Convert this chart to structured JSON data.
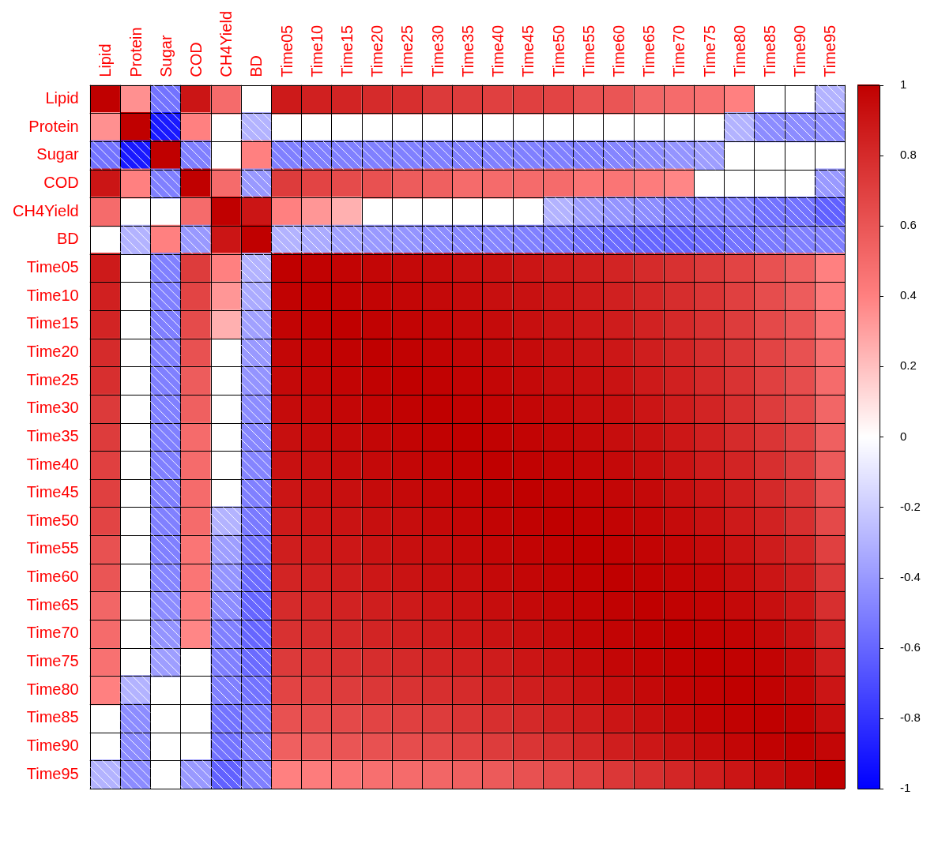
{
  "chart_data": {
    "type": "heatmap",
    "categories": [
      "Lipid",
      "Protein",
      "Sugar",
      "COD",
      "CH4Yield",
      "BD",
      "Time05",
      "Time10",
      "Time15",
      "Time20",
      "Time25",
      "Time30",
      "Time35",
      "Time40",
      "Time45",
      "Time50",
      "Time55",
      "Time60",
      "Time65",
      "Time70",
      "Time75",
      "Time80",
      "Time85",
      "Time90",
      "Time95"
    ],
    "y_categories": [
      "Lipid",
      "Protein",
      "Sugar",
      "COD",
      "CH4Yield",
      "BD",
      "Time05",
      "Time10",
      "Time15",
      "Time20",
      "Time25",
      "Time30",
      "Time35",
      "Time40",
      "Time45",
      "Time50",
      "Time55",
      "Time60",
      "Time65",
      "Time70",
      "Time75",
      "Time80",
      "Time85",
      "Time90",
      "Time95"
    ],
    "clim": [
      -1,
      1
    ],
    "grid": true,
    "cticks": [
      -1,
      -0.8,
      -0.6,
      -0.4,
      -0.2,
      0,
      0.2,
      0.4,
      0.6,
      0.8,
      1
    ],
    "cells": [
      [
        1,
        0.35,
        -0.55,
        0.9,
        0.5,
        null,
        0.88,
        0.85,
        0.83,
        0.8,
        0.78,
        0.73,
        0.72,
        0.7,
        0.7,
        0.68,
        0.62,
        0.6,
        0.52,
        0.5,
        0.47,
        0.4,
        null,
        null,
        -0.3
      ],
      [
        0.35,
        1,
        -0.9,
        0.4,
        null,
        -0.3,
        null,
        null,
        null,
        null,
        null,
        null,
        null,
        null,
        null,
        null,
        null,
        null,
        null,
        null,
        null,
        -0.3,
        -0.45,
        -0.45,
        -0.45
      ],
      [
        -0.55,
        -0.9,
        1,
        -0.5,
        null,
        0.4,
        -0.5,
        -0.5,
        -0.5,
        -0.5,
        -0.5,
        -0.5,
        -0.5,
        -0.5,
        -0.5,
        -0.5,
        -0.5,
        -0.48,
        -0.45,
        -0.42,
        -0.38,
        null,
        null,
        null,
        null
      ],
      [
        0.9,
        0.4,
        -0.5,
        1,
        0.5,
        -0.4,
        0.72,
        0.68,
        0.65,
        0.62,
        0.57,
        0.55,
        0.5,
        0.5,
        0.5,
        0.5,
        0.45,
        0.45,
        0.42,
        0.38,
        null,
        null,
        null,
        null,
        -0.4
      ],
      [
        0.5,
        null,
        null,
        0.5,
        1,
        0.9,
        0.4,
        0.33,
        0.25,
        null,
        null,
        null,
        null,
        null,
        null,
        -0.3,
        -0.38,
        -0.42,
        -0.45,
        -0.5,
        -0.5,
        -0.5,
        -0.55,
        -0.55,
        -0.62
      ],
      [
        null,
        -0.3,
        0.4,
        -0.4,
        0.9,
        1,
        -0.3,
        -0.33,
        -0.37,
        -0.4,
        -0.42,
        -0.45,
        -0.47,
        -0.48,
        -0.5,
        -0.52,
        -0.55,
        -0.58,
        -0.6,
        -0.6,
        -0.58,
        -0.55,
        -0.52,
        -0.5,
        -0.5
      ],
      [
        0.88,
        null,
        -0.5,
        0.72,
        0.4,
        -0.3,
        1,
        0.99,
        0.98,
        0.97,
        0.96,
        0.95,
        0.93,
        0.92,
        0.9,
        0.88,
        0.86,
        0.83,
        0.8,
        0.77,
        0.73,
        0.68,
        0.62,
        0.55,
        0.4
      ],
      [
        0.85,
        null,
        -0.5,
        0.68,
        0.33,
        -0.33,
        0.99,
        1,
        0.99,
        0.98,
        0.97,
        0.96,
        0.95,
        0.93,
        0.92,
        0.9,
        0.88,
        0.85,
        0.82,
        0.79,
        0.75,
        0.7,
        0.64,
        0.57,
        0.42
      ],
      [
        0.83,
        null,
        -0.5,
        0.65,
        0.25,
        -0.37,
        0.98,
        0.99,
        1,
        0.99,
        0.98,
        0.97,
        0.96,
        0.95,
        0.93,
        0.91,
        0.89,
        0.87,
        0.84,
        0.81,
        0.77,
        0.72,
        0.66,
        0.6,
        0.45
      ],
      [
        0.8,
        null,
        -0.5,
        0.62,
        null,
        -0.4,
        0.97,
        0.98,
        0.99,
        1,
        0.99,
        0.98,
        0.97,
        0.96,
        0.95,
        0.93,
        0.91,
        0.89,
        0.86,
        0.83,
        0.79,
        0.74,
        0.68,
        0.62,
        0.48
      ],
      [
        0.78,
        null,
        -0.5,
        0.57,
        null,
        -0.42,
        0.96,
        0.97,
        0.98,
        0.99,
        1,
        0.99,
        0.98,
        0.97,
        0.96,
        0.94,
        0.93,
        0.91,
        0.88,
        0.85,
        0.81,
        0.76,
        0.7,
        0.64,
        0.5
      ],
      [
        0.73,
        null,
        -0.5,
        0.55,
        null,
        -0.45,
        0.95,
        0.96,
        0.97,
        0.98,
        0.99,
        1,
        0.99,
        0.98,
        0.97,
        0.96,
        0.94,
        0.93,
        0.9,
        0.87,
        0.83,
        0.78,
        0.72,
        0.66,
        0.52
      ],
      [
        0.72,
        null,
        -0.5,
        0.5,
        null,
        -0.47,
        0.93,
        0.95,
        0.96,
        0.97,
        0.98,
        0.99,
        1,
        0.99,
        0.98,
        0.97,
        0.96,
        0.94,
        0.92,
        0.89,
        0.85,
        0.8,
        0.75,
        0.69,
        0.55
      ],
      [
        0.7,
        null,
        -0.5,
        0.5,
        null,
        -0.48,
        0.92,
        0.93,
        0.95,
        0.96,
        0.97,
        0.98,
        0.99,
        1,
        0.99,
        0.98,
        0.97,
        0.96,
        0.94,
        0.91,
        0.87,
        0.83,
        0.78,
        0.72,
        0.58
      ],
      [
        0.7,
        null,
        -0.5,
        0.5,
        null,
        -0.5,
        0.9,
        0.92,
        0.93,
        0.95,
        0.96,
        0.97,
        0.98,
        0.99,
        1,
        0.99,
        0.98,
        0.97,
        0.96,
        0.93,
        0.9,
        0.86,
        0.81,
        0.75,
        0.62
      ],
      [
        0.68,
        null,
        -0.5,
        0.5,
        -0.3,
        -0.52,
        0.88,
        0.9,
        0.91,
        0.93,
        0.94,
        0.96,
        0.97,
        0.98,
        0.99,
        1,
        0.99,
        0.98,
        0.97,
        0.95,
        0.92,
        0.88,
        0.84,
        0.78,
        0.66
      ],
      [
        0.62,
        null,
        -0.5,
        0.45,
        -0.38,
        -0.55,
        0.86,
        0.88,
        0.89,
        0.91,
        0.93,
        0.94,
        0.96,
        0.97,
        0.98,
        0.99,
        1,
        0.99,
        0.98,
        0.97,
        0.95,
        0.91,
        0.87,
        0.82,
        0.7
      ],
      [
        0.6,
        null,
        -0.48,
        0.45,
        -0.42,
        -0.58,
        0.83,
        0.85,
        0.87,
        0.89,
        0.91,
        0.93,
        0.94,
        0.96,
        0.97,
        0.98,
        0.99,
        1,
        0.99,
        0.98,
        0.97,
        0.94,
        0.9,
        0.86,
        0.74
      ],
      [
        0.52,
        null,
        -0.45,
        0.42,
        -0.45,
        -0.6,
        0.8,
        0.82,
        0.84,
        0.86,
        0.88,
        0.9,
        0.92,
        0.94,
        0.96,
        0.97,
        0.98,
        0.99,
        1,
        0.99,
        0.98,
        0.96,
        0.93,
        0.89,
        0.78
      ],
      [
        0.5,
        null,
        -0.42,
        0.38,
        -0.5,
        -0.6,
        0.77,
        0.79,
        0.81,
        0.83,
        0.85,
        0.87,
        0.89,
        0.91,
        0.93,
        0.95,
        0.97,
        0.98,
        0.99,
        1,
        0.99,
        0.98,
        0.96,
        0.92,
        0.82
      ],
      [
        0.47,
        null,
        -0.38,
        null,
        -0.5,
        -0.58,
        0.73,
        0.75,
        0.77,
        0.79,
        0.81,
        0.83,
        0.85,
        0.87,
        0.9,
        0.92,
        0.95,
        0.97,
        0.98,
        0.99,
        1,
        0.99,
        0.98,
        0.95,
        0.86
      ],
      [
        0.4,
        -0.3,
        null,
        null,
        -0.5,
        -0.55,
        0.68,
        0.7,
        0.72,
        0.74,
        0.76,
        0.78,
        0.8,
        0.83,
        0.86,
        0.88,
        0.91,
        0.94,
        0.96,
        0.98,
        0.99,
        1,
        0.99,
        0.97,
        0.9
      ],
      [
        null,
        -0.45,
        null,
        null,
        -0.55,
        -0.52,
        0.62,
        0.64,
        0.66,
        0.68,
        0.7,
        0.72,
        0.75,
        0.78,
        0.81,
        0.84,
        0.87,
        0.9,
        0.93,
        0.96,
        0.98,
        0.99,
        1,
        0.99,
        0.94
      ],
      [
        null,
        -0.45,
        null,
        null,
        -0.55,
        -0.5,
        0.55,
        0.57,
        0.6,
        0.62,
        0.64,
        0.66,
        0.69,
        0.72,
        0.75,
        0.78,
        0.82,
        0.86,
        0.89,
        0.92,
        0.95,
        0.97,
        0.99,
        1,
        0.97
      ],
      [
        -0.3,
        -0.45,
        null,
        -0.4,
        -0.62,
        -0.5,
        0.4,
        0.42,
        0.45,
        0.48,
        0.5,
        0.52,
        0.55,
        0.58,
        0.62,
        0.66,
        0.7,
        0.74,
        0.78,
        0.82,
        0.86,
        0.9,
        0.94,
        0.97,
        1
      ]
    ]
  }
}
